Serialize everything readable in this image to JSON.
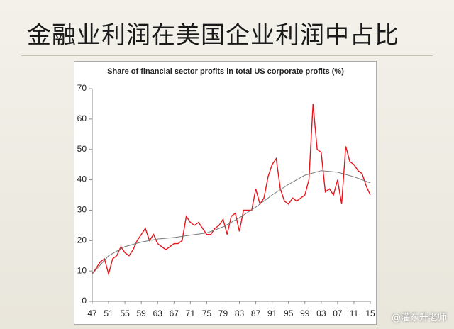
{
  "slide_title": "金融业利润在美国企业利润中占比",
  "watermark": "@灌东升老师",
  "chart_data": {
    "type": "line",
    "title": "Share of financial sector profits in total US corporate profits (%)",
    "xlim": [
      1947,
      2015
    ],
    "ylim": [
      0,
      70
    ],
    "yticks": [
      0,
      10,
      20,
      30,
      40,
      50,
      60,
      70
    ],
    "xticks": [
      {
        "value": 1947,
        "label": "47"
      },
      {
        "value": 1951,
        "label": "51"
      },
      {
        "value": 1955,
        "label": "55"
      },
      {
        "value": 1959,
        "label": "59"
      },
      {
        "value": 1963,
        "label": "63"
      },
      {
        "value": 1967,
        "label": "67"
      },
      {
        "value": 1971,
        "label": "71"
      },
      {
        "value": 1975,
        "label": "75"
      },
      {
        "value": 1979,
        "label": "79"
      },
      {
        "value": 1983,
        "label": "83"
      },
      {
        "value": 1987,
        "label": "87"
      },
      {
        "value": 1991,
        "label": "91"
      },
      {
        "value": 1995,
        "label": "95"
      },
      {
        "value": 1999,
        "label": "99"
      },
      {
        "value": 2003,
        "label": "03"
      },
      {
        "value": 2007,
        "label": "07"
      },
      {
        "value": 2011,
        "label": "11"
      },
      {
        "value": 2015,
        "label": "15"
      }
    ],
    "series": [
      {
        "color": "#e8141c",
        "x": [
          1947,
          1948,
          1949,
          1950,
          1951,
          1952,
          1953,
          1954,
          1955,
          1956,
          1957,
          1958,
          1959,
          1960,
          1961,
          1962,
          1963,
          1964,
          1965,
          1966,
          1967,
          1968,
          1969,
          1970,
          1971,
          1972,
          1973,
          1974,
          1975,
          1976,
          1977,
          1978,
          1979,
          1980,
          1981,
          1982,
          1983,
          1984,
          1985,
          1986,
          1987,
          1988,
          1989,
          1990,
          1991,
          1992,
          1993,
          1994,
          1995,
          1996,
          1997,
          1998,
          1999,
          2000,
          2001,
          2002,
          2003,
          2004,
          2005,
          2006,
          2007,
          2008,
          2009,
          2010,
          2011,
          2012,
          2013,
          2014,
          2015
        ],
        "values": [
          9,
          11,
          13,
          14,
          9,
          14,
          15,
          18,
          16,
          15,
          17,
          20,
          22,
          24,
          20,
          22,
          19,
          18,
          17,
          18,
          19,
          19,
          20,
          28,
          26,
          25,
          26,
          24,
          22,
          22,
          24,
          25,
          27,
          22,
          28,
          29,
          23,
          30,
          30,
          30,
          37,
          32,
          34,
          41,
          45,
          47,
          37,
          33,
          32,
          34,
          33,
          34,
          35,
          40,
          65,
          50,
          49,
          36,
          37,
          35,
          40,
          32,
          51,
          46,
          45,
          43,
          42,
          38,
          35
        ]
      },
      {
        "color": "#777777",
        "x": [
          1947,
          1951,
          1955,
          1959,
          1963,
          1967,
          1971,
          1975,
          1979,
          1983,
          1987,
          1991,
          1995,
          1999,
          2003,
          2007,
          2011,
          2015
        ],
        "values": [
          9,
          15,
          18,
          19.5,
          20.5,
          21,
          21.8,
          22.5,
          24.5,
          27.5,
          31,
          35,
          38.5,
          41.5,
          43,
          42.5,
          41,
          39
        ]
      }
    ]
  }
}
